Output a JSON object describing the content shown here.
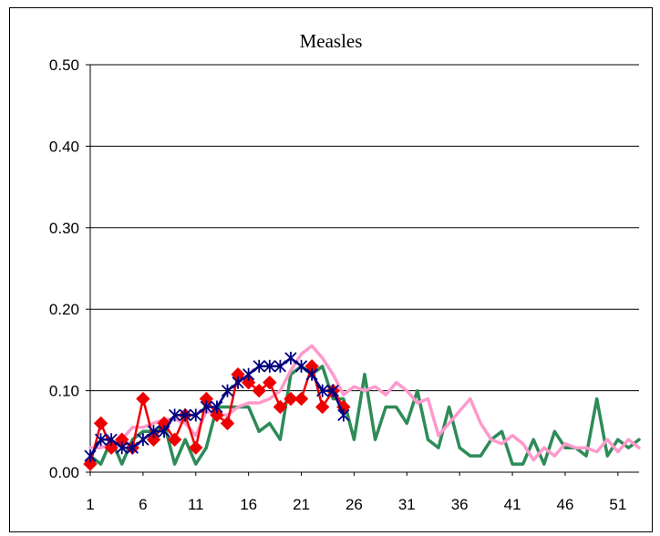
{
  "chart_data": {
    "type": "line",
    "title": "Measles",
    "xlabel": "",
    "ylabel": "",
    "ylim": [
      0,
      0.5
    ],
    "xlim": [
      1,
      53
    ],
    "y_ticks": [
      "0.00",
      "0.10",
      "0.20",
      "0.30",
      "0.40",
      "0.50"
    ],
    "y_tick_values": [
      0,
      0.1,
      0.2,
      0.3,
      0.4,
      0.5
    ],
    "x_ticks": [
      "1",
      "6",
      "11",
      "16",
      "21",
      "26",
      "31",
      "36",
      "41",
      "46",
      "51"
    ],
    "x_tick_values": [
      1,
      6,
      11,
      16,
      21,
      26,
      31,
      36,
      41,
      46,
      51
    ],
    "grid": true,
    "legend": "none",
    "series": [
      {
        "color": "#2e8b57",
        "marker": "none",
        "x": [
          1,
          2,
          3,
          4,
          5,
          6,
          7,
          8,
          9,
          10,
          11,
          12,
          13,
          14,
          15,
          16,
          17,
          18,
          19,
          20,
          21,
          22,
          23,
          24,
          25,
          26,
          27,
          28,
          29,
          30,
          31,
          32,
          33,
          34,
          35,
          36,
          37,
          38,
          39,
          40,
          41,
          42,
          43,
          44,
          45,
          46,
          47,
          48,
          49,
          50,
          51,
          52,
          53
        ],
        "y": [
          0.02,
          0.01,
          0.04,
          0.01,
          0.04,
          0.05,
          0.05,
          0.06,
          0.01,
          0.04,
          0.01,
          0.03,
          0.08,
          0.08,
          0.08,
          0.08,
          0.05,
          0.06,
          0.04,
          0.12,
          0.13,
          0.12,
          0.13,
          0.09,
          0.09,
          0.04,
          0.12,
          0.04,
          0.08,
          0.08,
          0.06,
          0.1,
          0.04,
          0.03,
          0.08,
          0.03,
          0.02,
          0.02,
          0.04,
          0.05,
          0.01,
          0.01,
          0.04,
          0.01,
          0.05,
          0.03,
          0.03,
          0.02,
          0.09,
          0.02,
          0.04,
          0.03,
          0.04
        ]
      },
      {
        "color": "#ff99cc",
        "marker": "none",
        "x": [
          1,
          2,
          3,
          4,
          5,
          6,
          7,
          8,
          9,
          10,
          11,
          12,
          13,
          14,
          15,
          16,
          17,
          18,
          19,
          20,
          21,
          22,
          23,
          24,
          25,
          26,
          27,
          28,
          29,
          30,
          31,
          32,
          33,
          34,
          35,
          36,
          37,
          38,
          39,
          40,
          41,
          42,
          43,
          44,
          45,
          46,
          47,
          48,
          49,
          50,
          51,
          52,
          53
        ],
        "y": [
          0.03,
          0.03,
          0.035,
          0.04,
          0.055,
          0.055,
          0.06,
          0.065,
          0.065,
          0.06,
          0.045,
          0.075,
          0.07,
          0.07,
          0.08,
          0.085,
          0.085,
          0.09,
          0.1,
          0.125,
          0.145,
          0.155,
          0.14,
          0.12,
          0.095,
          0.105,
          0.1,
          0.105,
          0.095,
          0.11,
          0.1,
          0.085,
          0.09,
          0.045,
          0.06,
          0.075,
          0.09,
          0.06,
          0.04,
          0.035,
          0.045,
          0.035,
          0.015,
          0.03,
          0.02,
          0.035,
          0.03,
          0.03,
          0.025,
          0.04,
          0.025,
          0.04,
          0.03
        ]
      },
      {
        "color": "#ee0000",
        "marker": "diamond",
        "x": [
          1,
          2,
          3,
          4,
          5,
          6,
          7,
          8,
          9,
          10,
          11,
          12,
          13,
          14,
          15,
          16,
          17,
          18,
          19,
          20,
          21,
          22,
          23,
          24,
          25
        ],
        "y": [
          0.01,
          0.06,
          0.03,
          0.04,
          0.03,
          0.09,
          0.04,
          0.06,
          0.04,
          0.07,
          0.03,
          0.09,
          0.07,
          0.06,
          0.12,
          0.11,
          0.1,
          0.11,
          0.08,
          0.09,
          0.09,
          0.13,
          0.08,
          0.1,
          0.08
        ]
      },
      {
        "color": "#000080",
        "marker": "star",
        "x": [
          1,
          2,
          3,
          4,
          5,
          6,
          7,
          8,
          9,
          10,
          11,
          12,
          13,
          14,
          15,
          16,
          17,
          18,
          19,
          20,
          21,
          22,
          23,
          24,
          25
        ],
        "y": [
          0.02,
          0.04,
          0.04,
          0.03,
          0.03,
          0.04,
          0.05,
          0.05,
          0.07,
          0.07,
          0.07,
          0.08,
          0.08,
          0.1,
          0.11,
          0.12,
          0.13,
          0.13,
          0.13,
          0.14,
          0.13,
          0.12,
          0.1,
          0.1,
          0.07
        ]
      }
    ]
  }
}
